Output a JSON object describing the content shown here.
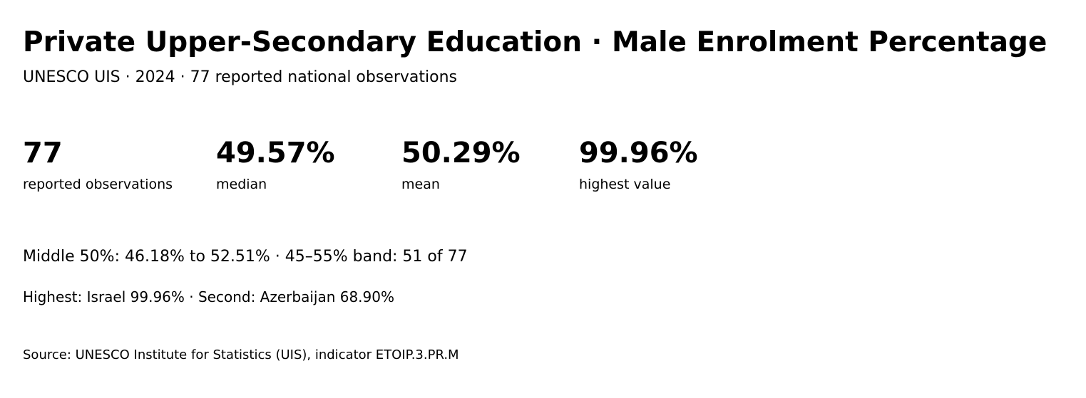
{
  "header": {
    "title": "Private Upper-Secondary Education · Male Enrolment Percentage",
    "subtitle": "UNESCO UIS · 2024 · 77 reported national observations"
  },
  "stats": [
    {
      "value": "77",
      "label": "reported observations"
    },
    {
      "value": "49.57%",
      "label": "median"
    },
    {
      "value": "50.29%",
      "label": "mean"
    },
    {
      "value": "99.96%",
      "label": "highest value"
    }
  ],
  "summary": {
    "range_line": "Middle 50%: 46.18% to 52.51% · 45–55% band: 51 of 77",
    "highest_line": "Highest: Israel 99.96% · Second: Azerbaijan 68.90%"
  },
  "footer": {
    "source": "Source: UNESCO Institute for Statistics (UIS), indicator ETOIP.3.PR.M"
  }
}
